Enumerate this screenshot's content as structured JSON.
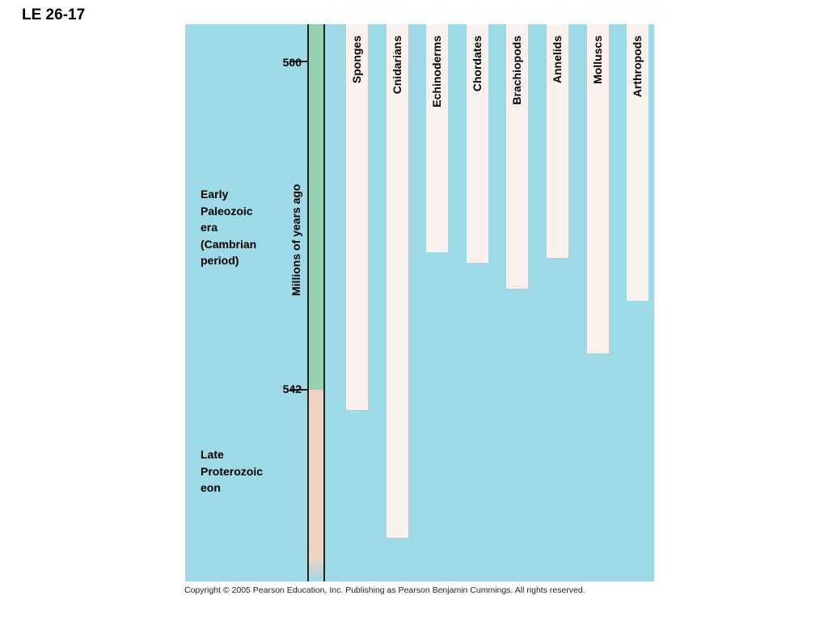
{
  "slide_title": "LE 26-17",
  "axis_label": "Millions of years ago",
  "ticks": [
    {
      "label": "500"
    },
    {
      "label": "542"
    }
  ],
  "eras": [
    {
      "lines": [
        "Early",
        "Paleozoic",
        "era",
        "(Cambrian",
        "period)"
      ]
    },
    {
      "lines": [
        "Late",
        "Proterozoic",
        "eon"
      ]
    }
  ],
  "phyla": [
    {
      "name": "Sponges",
      "extent_fraction": 0.692
    },
    {
      "name": "Cnidarians",
      "extent_fraction": 0.922
    },
    {
      "name": "Echinoderms",
      "extent_fraction": 0.41
    },
    {
      "name": "Chordates",
      "extent_fraction": 0.428
    },
    {
      "name": "Brachiopods",
      "extent_fraction": 0.474
    },
    {
      "name": "Annelids",
      "extent_fraction": 0.419
    },
    {
      "name": "Molluscs",
      "extent_fraction": 0.591
    },
    {
      "name": "Arthropods",
      "extent_fraction": 0.497
    }
  ],
  "colors": {
    "background": "#9dd9e6",
    "cambrian": "#93d1b1",
    "proterozoic": "#efd3c5",
    "phylum_bar": "#fbf1ec"
  },
  "copyright": "Copyright © 2005 Pearson Education, Inc. Publishing as Pearson Benjamin Cummings. All rights reserved."
}
